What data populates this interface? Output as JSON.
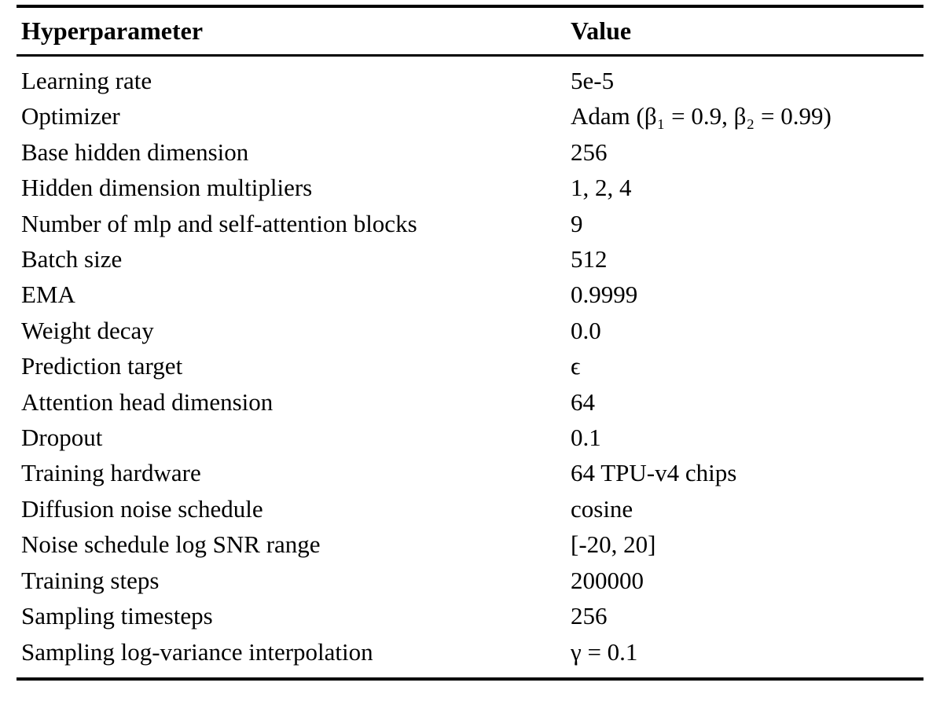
{
  "table": {
    "columns": [
      {
        "label": "Hyperparameter"
      },
      {
        "label": "Value"
      }
    ],
    "rows": [
      {
        "param": "Learning rate",
        "value": "5e-5"
      },
      {
        "param": "Optimizer",
        "value": "Adam (β₁ = 0.9, β₂ = 0.99)"
      },
      {
        "param": "Base hidden dimension",
        "value": "256"
      },
      {
        "param": "Hidden dimension multipliers",
        "value": "1, 2, 4"
      },
      {
        "param": "Number of mlp and self-attention blocks",
        "value": "9"
      },
      {
        "param": "Batch size",
        "value": "512"
      },
      {
        "param": "EMA",
        "value": "0.9999"
      },
      {
        "param": "Weight decay",
        "value": "0.0"
      },
      {
        "param": "Prediction target",
        "value": "ϵ"
      },
      {
        "param": "Attention head dimension",
        "value": "64"
      },
      {
        "param": "Dropout",
        "value": "0.1"
      },
      {
        "param": "Training hardware",
        "value": "64 TPU-v4 chips"
      },
      {
        "param": "Diffusion noise schedule",
        "value": "cosine"
      },
      {
        "param": "Noise schedule log SNR range",
        "value": "[-20, 20]"
      },
      {
        "param": "Training steps",
        "value": "200000"
      },
      {
        "param": "Sampling timesteps",
        "value": "256"
      },
      {
        "param": "Sampling log-variance interpolation",
        "value": "γ = 0.1"
      }
    ]
  }
}
